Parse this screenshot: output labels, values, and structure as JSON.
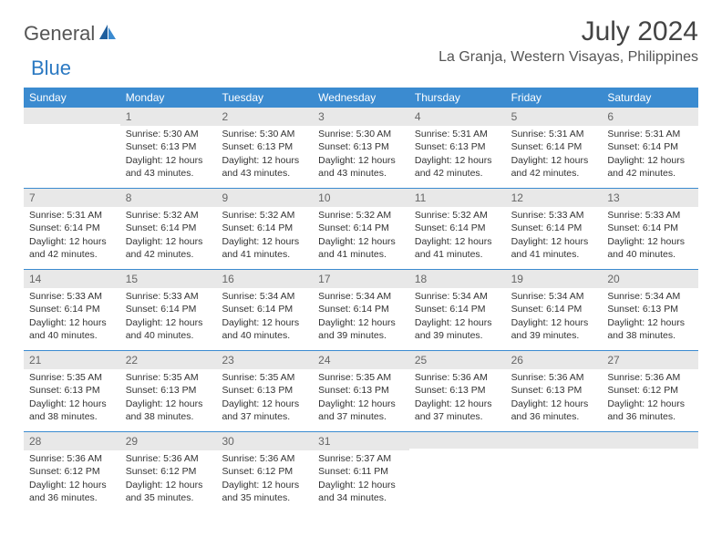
{
  "logo": {
    "part1": "General",
    "part2": "Blue"
  },
  "title": "July 2024",
  "location": "La Granja, Western Visayas, Philippines",
  "colors": {
    "header_bg": "#3b8bd0",
    "header_text": "#ffffff",
    "daynum_bg": "#e8e8e8",
    "daynum_text": "#666666",
    "body_text": "#333333",
    "rule": "#3b8bd0",
    "logo_gray": "#555555",
    "logo_blue": "#2b79c2"
  },
  "day_names": [
    "Sunday",
    "Monday",
    "Tuesday",
    "Wednesday",
    "Thursday",
    "Friday",
    "Saturday"
  ],
  "weeks": [
    [
      {
        "n": "",
        "lines": []
      },
      {
        "n": "1",
        "lines": [
          "Sunrise: 5:30 AM",
          "Sunset: 6:13 PM",
          "Daylight: 12 hours and 43 minutes."
        ]
      },
      {
        "n": "2",
        "lines": [
          "Sunrise: 5:30 AM",
          "Sunset: 6:13 PM",
          "Daylight: 12 hours and 43 minutes."
        ]
      },
      {
        "n": "3",
        "lines": [
          "Sunrise: 5:30 AM",
          "Sunset: 6:13 PM",
          "Daylight: 12 hours and 43 minutes."
        ]
      },
      {
        "n": "4",
        "lines": [
          "Sunrise: 5:31 AM",
          "Sunset: 6:13 PM",
          "Daylight: 12 hours and 42 minutes."
        ]
      },
      {
        "n": "5",
        "lines": [
          "Sunrise: 5:31 AM",
          "Sunset: 6:14 PM",
          "Daylight: 12 hours and 42 minutes."
        ]
      },
      {
        "n": "6",
        "lines": [
          "Sunrise: 5:31 AM",
          "Sunset: 6:14 PM",
          "Daylight: 12 hours and 42 minutes."
        ]
      }
    ],
    [
      {
        "n": "7",
        "lines": [
          "Sunrise: 5:31 AM",
          "Sunset: 6:14 PM",
          "Daylight: 12 hours and 42 minutes."
        ]
      },
      {
        "n": "8",
        "lines": [
          "Sunrise: 5:32 AM",
          "Sunset: 6:14 PM",
          "Daylight: 12 hours and 42 minutes."
        ]
      },
      {
        "n": "9",
        "lines": [
          "Sunrise: 5:32 AM",
          "Sunset: 6:14 PM",
          "Daylight: 12 hours and 41 minutes."
        ]
      },
      {
        "n": "10",
        "lines": [
          "Sunrise: 5:32 AM",
          "Sunset: 6:14 PM",
          "Daylight: 12 hours and 41 minutes."
        ]
      },
      {
        "n": "11",
        "lines": [
          "Sunrise: 5:32 AM",
          "Sunset: 6:14 PM",
          "Daylight: 12 hours and 41 minutes."
        ]
      },
      {
        "n": "12",
        "lines": [
          "Sunrise: 5:33 AM",
          "Sunset: 6:14 PM",
          "Daylight: 12 hours and 41 minutes."
        ]
      },
      {
        "n": "13",
        "lines": [
          "Sunrise: 5:33 AM",
          "Sunset: 6:14 PM",
          "Daylight: 12 hours and 40 minutes."
        ]
      }
    ],
    [
      {
        "n": "14",
        "lines": [
          "Sunrise: 5:33 AM",
          "Sunset: 6:14 PM",
          "Daylight: 12 hours and 40 minutes."
        ]
      },
      {
        "n": "15",
        "lines": [
          "Sunrise: 5:33 AM",
          "Sunset: 6:14 PM",
          "Daylight: 12 hours and 40 minutes."
        ]
      },
      {
        "n": "16",
        "lines": [
          "Sunrise: 5:34 AM",
          "Sunset: 6:14 PM",
          "Daylight: 12 hours and 40 minutes."
        ]
      },
      {
        "n": "17",
        "lines": [
          "Sunrise: 5:34 AM",
          "Sunset: 6:14 PM",
          "Daylight: 12 hours and 39 minutes."
        ]
      },
      {
        "n": "18",
        "lines": [
          "Sunrise: 5:34 AM",
          "Sunset: 6:14 PM",
          "Daylight: 12 hours and 39 minutes."
        ]
      },
      {
        "n": "19",
        "lines": [
          "Sunrise: 5:34 AM",
          "Sunset: 6:14 PM",
          "Daylight: 12 hours and 39 minutes."
        ]
      },
      {
        "n": "20",
        "lines": [
          "Sunrise: 5:34 AM",
          "Sunset: 6:13 PM",
          "Daylight: 12 hours and 38 minutes."
        ]
      }
    ],
    [
      {
        "n": "21",
        "lines": [
          "Sunrise: 5:35 AM",
          "Sunset: 6:13 PM",
          "Daylight: 12 hours and 38 minutes."
        ]
      },
      {
        "n": "22",
        "lines": [
          "Sunrise: 5:35 AM",
          "Sunset: 6:13 PM",
          "Daylight: 12 hours and 38 minutes."
        ]
      },
      {
        "n": "23",
        "lines": [
          "Sunrise: 5:35 AM",
          "Sunset: 6:13 PM",
          "Daylight: 12 hours and 37 minutes."
        ]
      },
      {
        "n": "24",
        "lines": [
          "Sunrise: 5:35 AM",
          "Sunset: 6:13 PM",
          "Daylight: 12 hours and 37 minutes."
        ]
      },
      {
        "n": "25",
        "lines": [
          "Sunrise: 5:36 AM",
          "Sunset: 6:13 PM",
          "Daylight: 12 hours and 37 minutes."
        ]
      },
      {
        "n": "26",
        "lines": [
          "Sunrise: 5:36 AM",
          "Sunset: 6:13 PM",
          "Daylight: 12 hours and 36 minutes."
        ]
      },
      {
        "n": "27",
        "lines": [
          "Sunrise: 5:36 AM",
          "Sunset: 6:12 PM",
          "Daylight: 12 hours and 36 minutes."
        ]
      }
    ],
    [
      {
        "n": "28",
        "lines": [
          "Sunrise: 5:36 AM",
          "Sunset: 6:12 PM",
          "Daylight: 12 hours and 36 minutes."
        ]
      },
      {
        "n": "29",
        "lines": [
          "Sunrise: 5:36 AM",
          "Sunset: 6:12 PM",
          "Daylight: 12 hours and 35 minutes."
        ]
      },
      {
        "n": "30",
        "lines": [
          "Sunrise: 5:36 AM",
          "Sunset: 6:12 PM",
          "Daylight: 12 hours and 35 minutes."
        ]
      },
      {
        "n": "31",
        "lines": [
          "Sunrise: 5:37 AM",
          "Sunset: 6:11 PM",
          "Daylight: 12 hours and 34 minutes."
        ]
      },
      {
        "n": "",
        "lines": []
      },
      {
        "n": "",
        "lines": []
      },
      {
        "n": "",
        "lines": []
      }
    ]
  ]
}
